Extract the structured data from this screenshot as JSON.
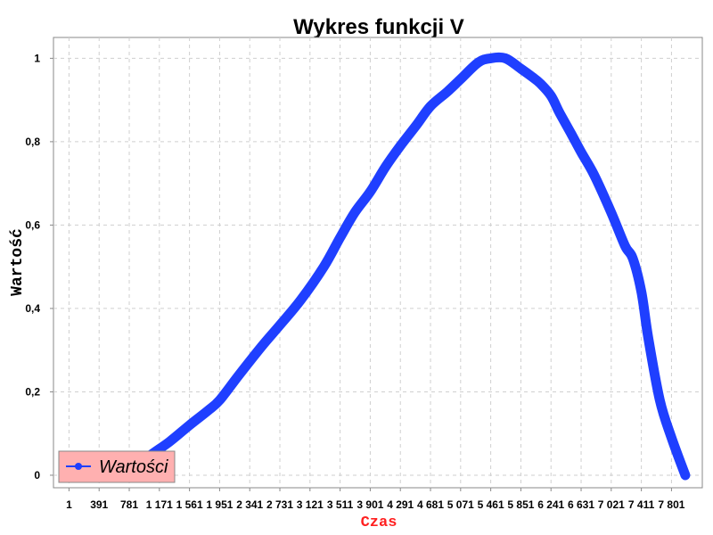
{
  "chart_data": {
    "type": "line",
    "title": "Wykres funkcji V",
    "xlabel": "Czas",
    "ylabel": "Wartość",
    "xlim": [
      -200,
      8200
    ],
    "ylim": [
      -0.03,
      1.05
    ],
    "x_ticks": [
      1,
      391,
      781,
      1171,
      1561,
      1951,
      2341,
      2731,
      3121,
      3511,
      3901,
      4291,
      4681,
      5071,
      5461,
      5851,
      6241,
      6631,
      7021,
      7411,
      7801
    ],
    "x_tick_labels": [
      "1",
      "391",
      "781",
      "1 171",
      "1 561",
      "1 951",
      "2 341",
      "2 731",
      "3 121",
      "3 511",
      "3 901",
      "4 291",
      "4 681",
      "5 071",
      "5 461",
      "5 851",
      "6 241",
      "6 631",
      "7 021",
      "7 411",
      "7 801"
    ],
    "y_ticks": [
      0,
      0.2,
      0.4,
      0.6,
      0.8,
      1
    ],
    "y_tick_labels": [
      "0",
      "0,2",
      "0,4",
      "0,6",
      "0,8",
      "1"
    ],
    "grid": true,
    "legend_position": "bottom-left",
    "series": [
      {
        "name": "Wartości",
        "color": "#1f3fff",
        "x": [
          0,
          500,
          781,
          1000,
          1300,
          1561,
          1800,
          1951,
          2200,
          2500,
          2731,
          3000,
          3300,
          3511,
          3700,
          3901,
          4100,
          4291,
          4500,
          4681,
          4900,
          5071,
          5300,
          5461,
          5650,
          5851,
          6000,
          6100,
          6241,
          6350,
          6500,
          6631,
          6800,
          7021,
          7200,
          7300,
          7411,
          7500,
          7650,
          7801,
          7980
        ],
        "values": [
          0.0,
          0.0,
          0.0,
          0.04,
          0.08,
          0.12,
          0.155,
          0.18,
          0.24,
          0.31,
          0.36,
          0.42,
          0.5,
          0.57,
          0.63,
          0.68,
          0.74,
          0.79,
          0.84,
          0.885,
          0.92,
          0.95,
          0.99,
          1.0,
          1.0,
          0.975,
          0.955,
          0.94,
          0.91,
          0.87,
          0.82,
          0.775,
          0.72,
          0.63,
          0.55,
          0.52,
          0.44,
          0.33,
          0.18,
          0.09,
          0.0
        ]
      }
    ]
  }
}
